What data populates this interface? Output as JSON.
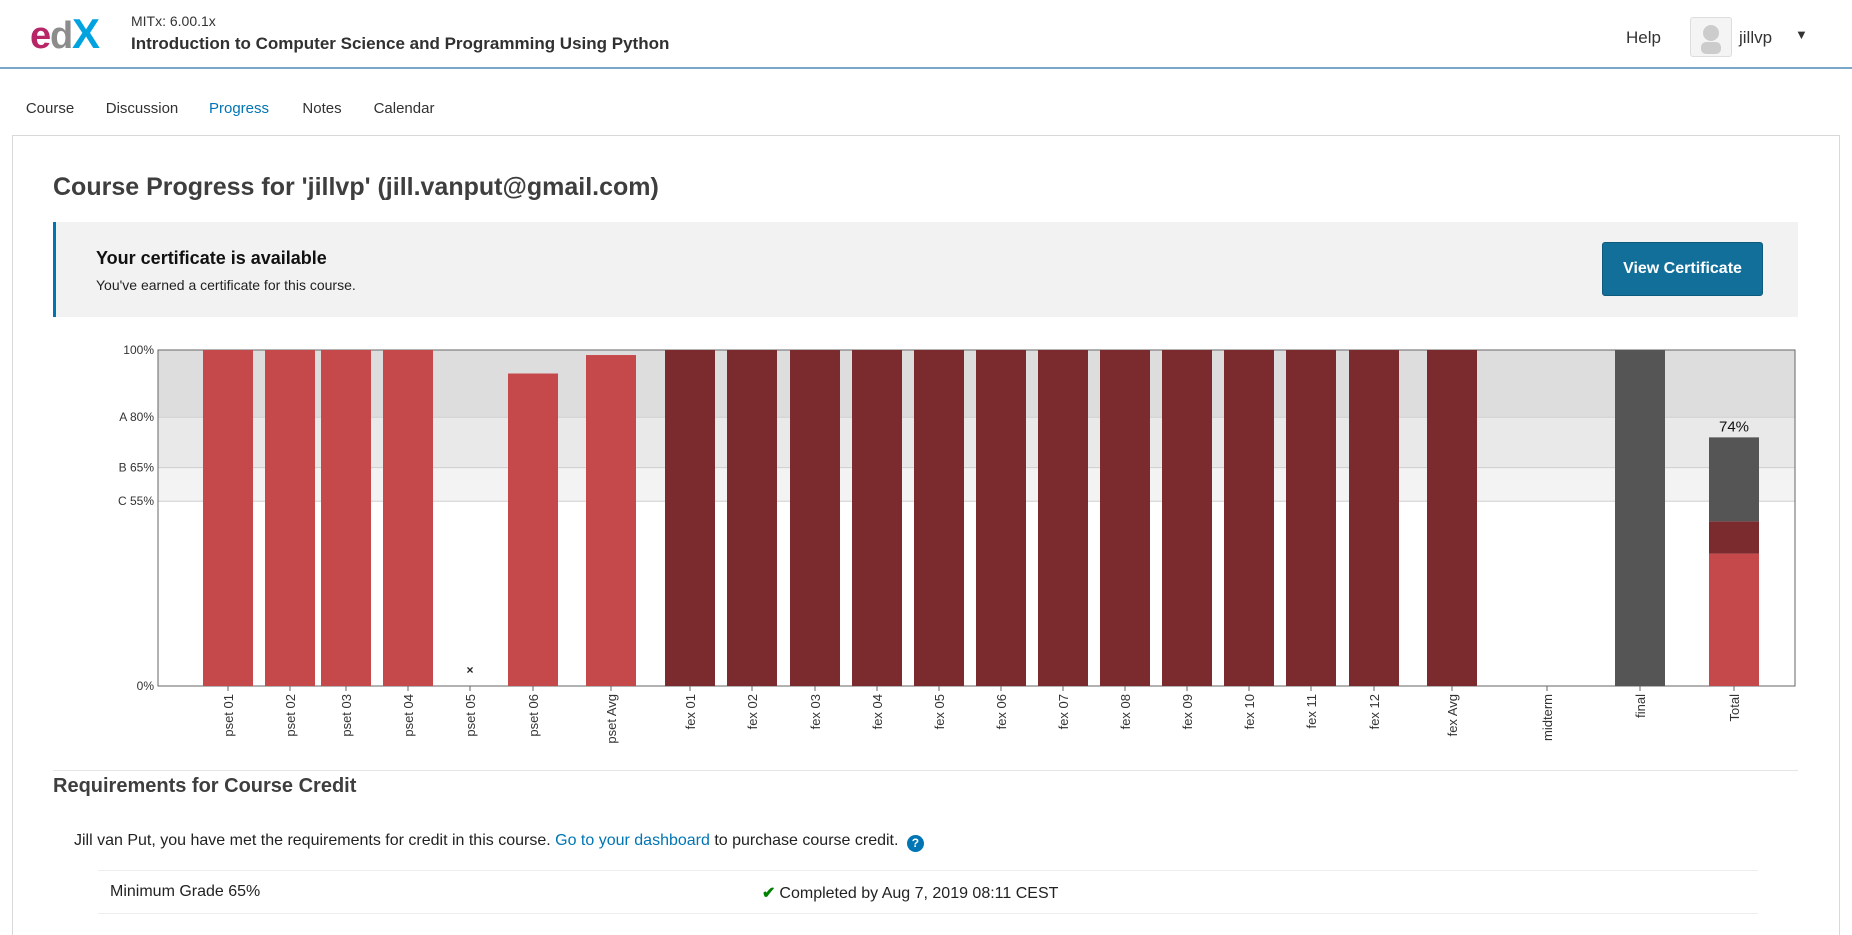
{
  "header": {
    "course_org": "MITx: 6.00.1x",
    "course_name": "Introduction to Computer Science and Programming Using Python",
    "help_label": "Help",
    "username": "jillvp",
    "brand_colors": {
      "pink": "#b72667",
      "gray": "#8c8c8c",
      "blue": "#00a3e0"
    }
  },
  "tabs": [
    {
      "label": "Course",
      "active": false
    },
    {
      "label": "Discussion",
      "active": false
    },
    {
      "label": "Progress",
      "active": true
    },
    {
      "label": "Notes",
      "active": false
    },
    {
      "label": "Calendar",
      "active": false
    }
  ],
  "page_title": "Course Progress for 'jillvp' (jill.vanput@gmail.com)",
  "certificate": {
    "title": "Your certificate is available",
    "description": "You've earned a certificate for this course.",
    "button_label": "View Certificate"
  },
  "chart_data": {
    "type": "bar",
    "ylim": [
      0,
      100
    ],
    "y_ticks": [
      {
        "value": 100,
        "label": "100%"
      },
      {
        "value": 80,
        "label": "A 80%"
      },
      {
        "value": 65,
        "label": "B 65%"
      },
      {
        "value": 55,
        "label": "C 55%"
      },
      {
        "value": 0,
        "label": "0%"
      }
    ],
    "grade_bands": [
      {
        "from": 80,
        "to": 100,
        "color": "#dddddd"
      },
      {
        "from": 65,
        "to": 80,
        "color": "#e9e9e9"
      },
      {
        "from": 55,
        "to": 65,
        "color": "#f3f3f3"
      }
    ],
    "colors": {
      "pset": "#c5484a",
      "fex": "#7b2b2e",
      "final": "#555555"
    },
    "categories": [
      "pset 01",
      "pset 02",
      "pset 03",
      "pset 04",
      "pset 05",
      "pset 06",
      "pset Avg",
      "fex 01",
      "fex 02",
      "fex 03",
      "fex 04",
      "fex 05",
      "fex 06",
      "fex 07",
      "fex 08",
      "fex 09",
      "fex 10",
      "fex 11",
      "fex 12",
      "fex Avg",
      "midterm",
      "final",
      "Total"
    ],
    "values": [
      100,
      100,
      100,
      100,
      0,
      93,
      98.5,
      100,
      100,
      100,
      100,
      100,
      100,
      100,
      100,
      100,
      100,
      100,
      100,
      100,
      0,
      100,
      74
    ],
    "series_group": [
      "pset",
      "pset",
      "pset",
      "pset",
      "pset",
      "pset",
      "pset",
      "fex",
      "fex",
      "fex",
      "fex",
      "fex",
      "fex",
      "fex",
      "fex",
      "fex",
      "fex",
      "fex",
      "fex",
      "fex",
      "midterm",
      "final",
      "total"
    ],
    "missing_marker": {
      "category": "pset 05",
      "symbol": "×"
    },
    "total_breakdown": [
      {
        "group": "pset",
        "value": 39.4
      },
      {
        "group": "fex",
        "value": 9.6
      },
      {
        "group": "final",
        "value": 25
      }
    ],
    "total_label": "74%"
  },
  "requirements": {
    "title": "Requirements for Course Credit",
    "text_before": "Jill van Put, you have met the requirements for credit in this course.",
    "link_text": "Go to your dashboard",
    "text_after": "to purchase course credit.",
    "help_glyph": "?",
    "row_label": "Minimum Grade 65%",
    "row_status": "Completed by Aug 7, 2019 08:11 CEST"
  }
}
